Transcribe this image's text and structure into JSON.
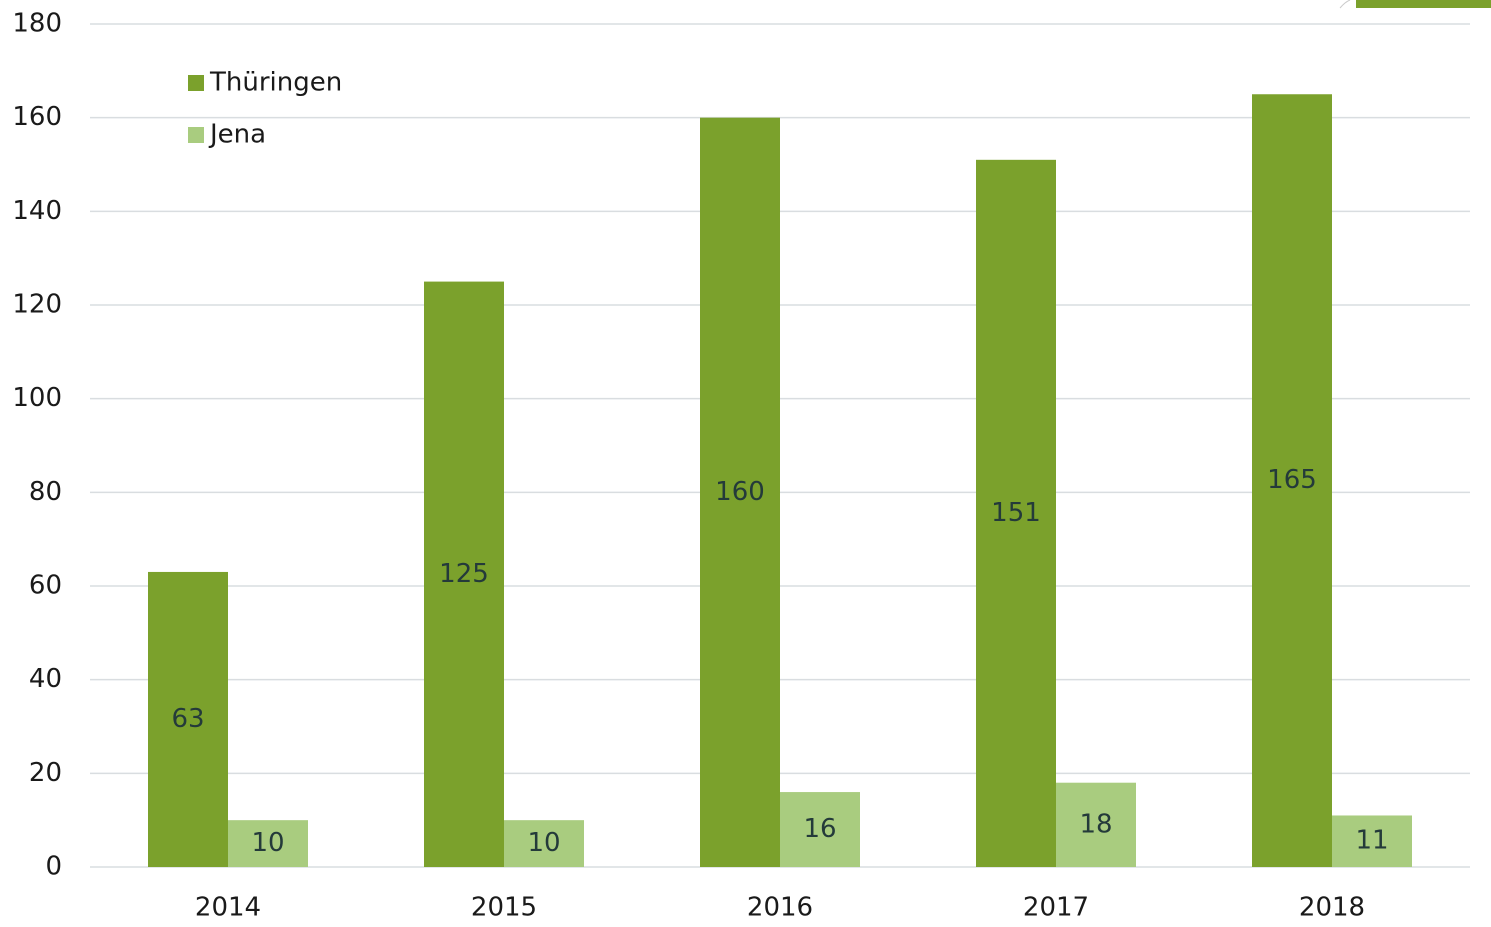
{
  "chart_data": {
    "type": "bar",
    "categories": [
      "2014",
      "2015",
      "2016",
      "2017",
      "2018"
    ],
    "series": [
      {
        "name": "Thüringen",
        "color": "#7ba12c",
        "values": [
          63,
          125,
          160,
          151,
          165
        ]
      },
      {
        "name": "Jena",
        "color": "#a9cc7f",
        "values": [
          10,
          10,
          16,
          18,
          11
        ]
      }
    ],
    "ylim": [
      0,
      180
    ],
    "yticks": [
      0,
      20,
      40,
      60,
      80,
      100,
      120,
      140,
      160,
      180
    ],
    "grid": true,
    "legend": "top-left"
  }
}
